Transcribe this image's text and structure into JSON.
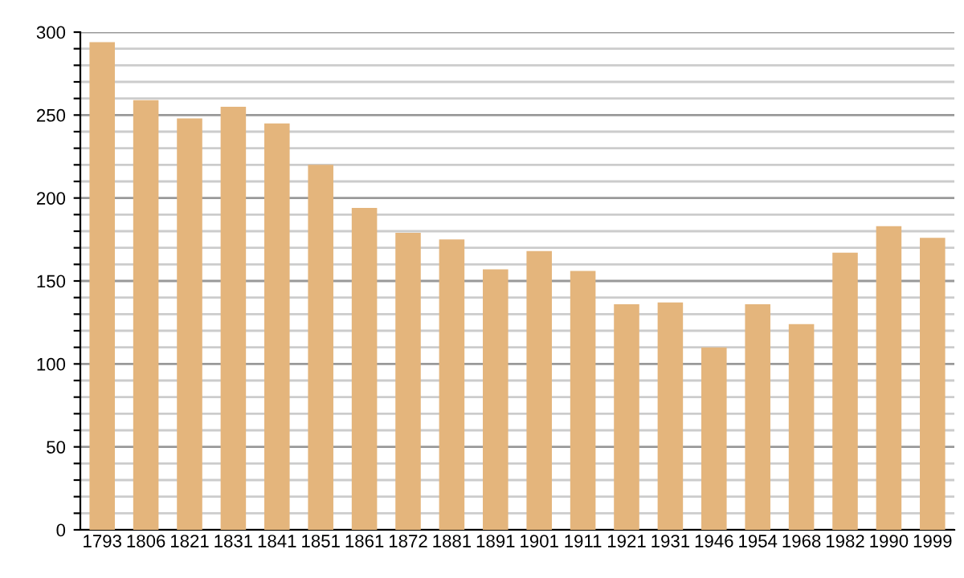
{
  "chart_data": {
    "type": "bar",
    "categories": [
      "1793",
      "1806",
      "1821",
      "1831",
      "1841",
      "1851",
      "1861",
      "1872",
      "1881",
      "1891",
      "1901",
      "1911",
      "1921",
      "1931",
      "1946",
      "1954",
      "1968",
      "1982",
      "1990",
      "1999"
    ],
    "values": [
      294,
      259,
      248,
      255,
      245,
      220,
      194,
      179,
      175,
      157,
      168,
      156,
      136,
      137,
      110,
      136,
      124,
      167,
      183,
      176
    ],
    "color": "#e4b57c",
    "ylim": [
      0,
      300
    ],
    "yticks": [
      0,
      {
        "value": 10,
        "label": null
      },
      {
        "value": 20,
        "label": null
      },
      {
        "value": 30,
        "label": null
      },
      {
        "value": 40,
        "label": null
      },
      50,
      {
        "value": 60,
        "label": null
      },
      {
        "value": 70,
        "label": null
      },
      {
        "value": 80,
        "label": null
      },
      {
        "value": 90,
        "label": null
      },
      100,
      {
        "value": 110,
        "label": null
      },
      {
        "value": 120,
        "label": null
      },
      {
        "value": 130,
        "label": null
      },
      {
        "value": 140,
        "label": null
      },
      150,
      {
        "value": 160,
        "label": null
      },
      {
        "value": 170,
        "label": null
      },
      {
        "value": 180,
        "label": null
      },
      {
        "value": 190,
        "label": null
      },
      200,
      {
        "value": 210,
        "label": null
      },
      {
        "value": 220,
        "label": null
      },
      {
        "value": 230,
        "label": null
      },
      {
        "value": 240,
        "label": null
      },
      250,
      {
        "value": 260,
        "label": null
      },
      {
        "value": 270,
        "label": null
      },
      {
        "value": 280,
        "label": null
      },
      {
        "value": 290,
        "label": null
      },
      300
    ],
    "grid": "y"
  }
}
